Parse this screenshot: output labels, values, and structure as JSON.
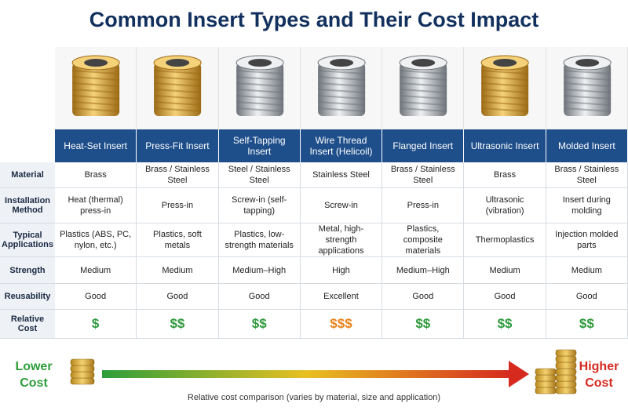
{
  "title": "Common Insert Types and Their Cost Impact",
  "columns": [
    "Heat-Set Insert",
    "Press-Fit Insert",
    "Self-Tapping Insert",
    "Wire Thread Insert (Helicoil)",
    "Flanged Insert",
    "Ultrasonic Insert",
    "Molded Insert"
  ],
  "rows": [
    {
      "label": "Material",
      "cells": [
        "Brass",
        "Brass / Stainless Steel",
        "Steel / Stainless Steel",
        "Stainless Steel",
        "Brass / Stainless Steel",
        "Brass",
        "Brass / Stainless Steel"
      ]
    },
    {
      "label": "Installation Method",
      "cells": [
        "Heat (thermal) press-in",
        "Press-in",
        "Screw-in (self-tapping)",
        "Screw-in",
        "Press-in",
        "Ultrasonic (vibration)",
        "Insert during molding"
      ]
    },
    {
      "label": "Typical Applications",
      "cells": [
        "Plastics (ABS, PC, nylon, etc.)",
        "Plastics, soft metals",
        "Plastics, low-strength materials",
        "Metal, high-strength applications",
        "Plastics, composite materials",
        "Thermoplastics",
        "Injection molded parts"
      ]
    },
    {
      "label": "Strength",
      "cells": [
        "Medium",
        "Medium",
        "Medium–High",
        "High",
        "Medium–High",
        "Medium",
        "Medium"
      ]
    },
    {
      "label": "Reusability",
      "cells": [
        "Good",
        "Good",
        "Good",
        "Excellent",
        "Good",
        "Good",
        "Good"
      ]
    },
    {
      "label": "Relative Cost",
      "cells": [
        "$",
        "$$",
        "$$",
        "$$$",
        "$$",
        "$$",
        "$$"
      ]
    }
  ],
  "cost_colors": [
    "#2e9a3c",
    "#2e9a3c",
    "#2e9a3c",
    "#e8841c",
    "#2e9a3c",
    "#2e9a3c",
    "#2e9a3c"
  ],
  "scale": {
    "low": "Lower Cost",
    "high": "Higher Cost",
    "caption": "Relative cost comparison (varies by material, size and application)"
  }
}
